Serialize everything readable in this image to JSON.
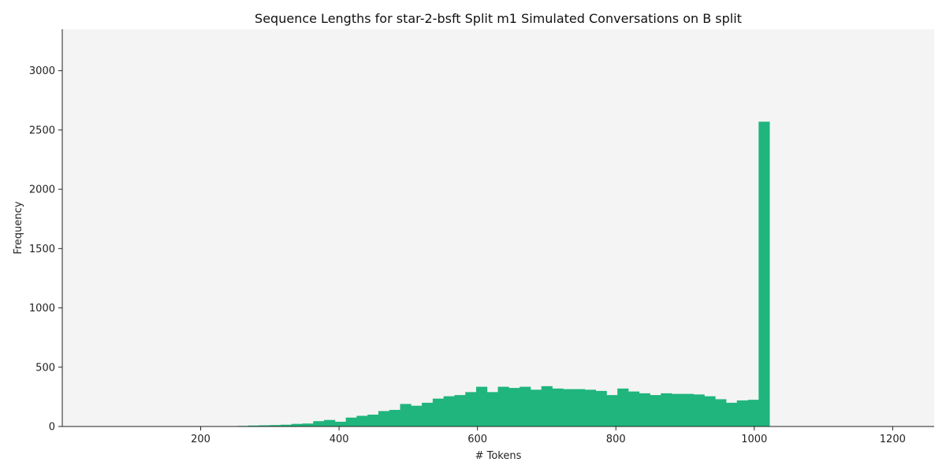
{
  "chart_data": {
    "type": "bar",
    "title": "Sequence Lengths for star-2-bsft Split m1 Simulated Conversations on B split",
    "xlabel": "# Tokens",
    "ylabel": "Frequency",
    "xlim": [
      0,
      1260
    ],
    "ylim": [
      0,
      3350
    ],
    "xticks": [
      200,
      400,
      600,
      800,
      1000,
      1200
    ],
    "yticks": [
      0,
      500,
      1000,
      1500,
      2000,
      2500,
      3000
    ],
    "grid": false,
    "bar_color": "#1fb57d",
    "plot_background": "#f4f4f4",
    "bin_width": 15.7,
    "bin_starts": [
      237.0,
      252.7,
      268.4,
      284.1,
      299.8,
      315.5,
      331.2,
      346.9,
      362.6,
      378.3,
      394.0,
      409.7,
      425.4,
      441.1,
      456.8,
      472.5,
      488.2,
      503.9,
      519.6,
      535.3,
      551.0,
      566.7,
      582.4,
      598.1,
      613.8,
      629.5,
      645.2,
      660.9,
      676.6,
      692.3,
      708.0,
      723.7,
      739.4,
      755.1,
      770.8,
      786.5,
      802.2,
      817.9,
      833.6,
      849.3,
      865.0,
      880.7,
      896.4,
      912.1,
      927.8,
      943.5,
      959.2,
      974.9,
      990.6,
      1006.3
    ],
    "values": [
      3,
      5,
      8,
      10,
      12,
      15,
      22,
      25,
      45,
      55,
      40,
      75,
      90,
      100,
      130,
      140,
      190,
      175,
      200,
      235,
      255,
      265,
      290,
      335,
      290,
      335,
      325,
      335,
      310,
      340,
      320,
      315,
      315,
      310,
      300,
      265,
      320,
      295,
      280,
      265,
      280,
      275,
      275,
      270,
      255,
      230,
      200,
      220,
      225,
      2570
    ]
  }
}
